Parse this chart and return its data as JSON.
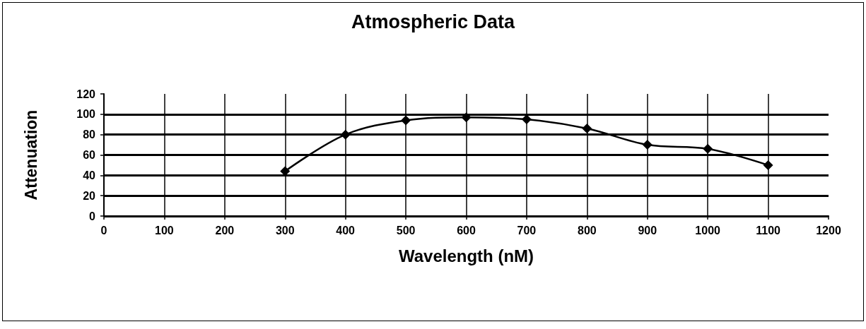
{
  "chart_data": {
    "type": "line",
    "title": "Atmospheric Data",
    "xlabel": "Wavelength (nM)",
    "ylabel": "Attenuation",
    "x": [
      300,
      400,
      500,
      600,
      700,
      800,
      900,
      1000,
      1100
    ],
    "series": [
      {
        "color": "#000000",
        "values": [
          44,
          80,
          94,
          97,
          95,
          86,
          70,
          66,
          50
        ]
      }
    ],
    "xlim": [
      0,
      1200
    ],
    "xticks": [
      0,
      100,
      200,
      300,
      400,
      500,
      600,
      700,
      800,
      900,
      1000,
      1100,
      1200
    ],
    "ylim": [
      0,
      120
    ],
    "yticks": [
      0,
      20,
      40,
      60,
      80,
      100,
      120
    ],
    "grid": true,
    "marker": "diamond",
    "line_style": "solid"
  }
}
